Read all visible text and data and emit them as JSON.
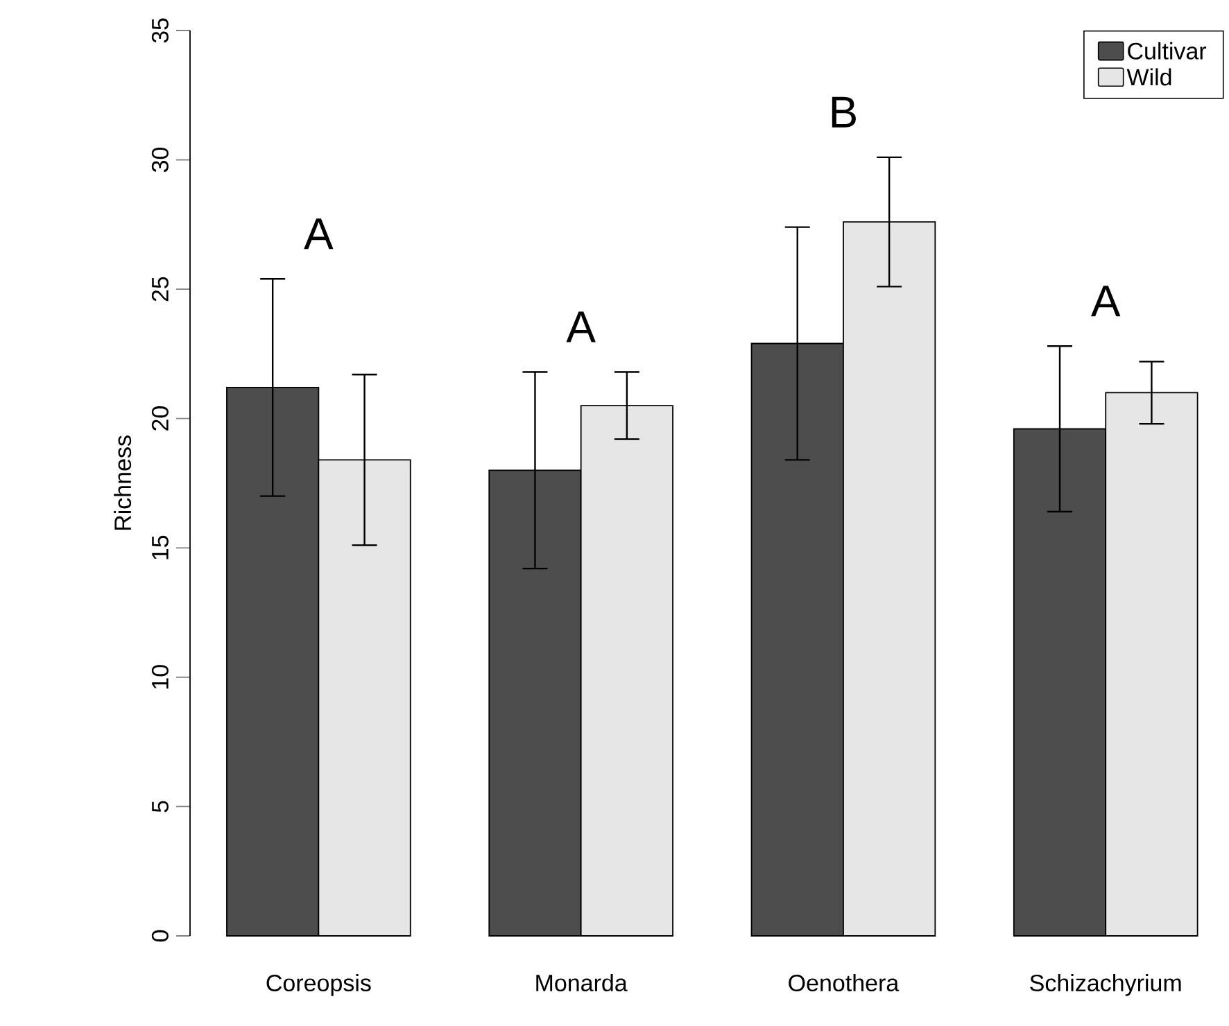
{
  "chart_data": {
    "type": "bar",
    "ylabel": "Richness",
    "categories": [
      "Coreopsis",
      "Monarda",
      "Oenothera",
      "Schizachyrium"
    ],
    "series": [
      {
        "name": "Cultivar",
        "color": "#4d4d4d",
        "values": [
          21.2,
          18.0,
          22.9,
          19.6
        ],
        "errors": [
          4.2,
          3.8,
          4.5,
          3.2
        ]
      },
      {
        "name": "Wild",
        "color": "#e6e6e6",
        "values": [
          18.4,
          20.5,
          27.6,
          21.0
        ],
        "errors": [
          3.3,
          1.3,
          2.5,
          1.2
        ]
      }
    ],
    "ylim": [
      0,
      35
    ],
    "yticks": [
      0,
      5,
      10,
      15,
      20,
      25,
      30,
      35
    ],
    "legend": "top right",
    "grid": false,
    "annotations": [
      "A",
      "A",
      "B",
      "A"
    ]
  }
}
